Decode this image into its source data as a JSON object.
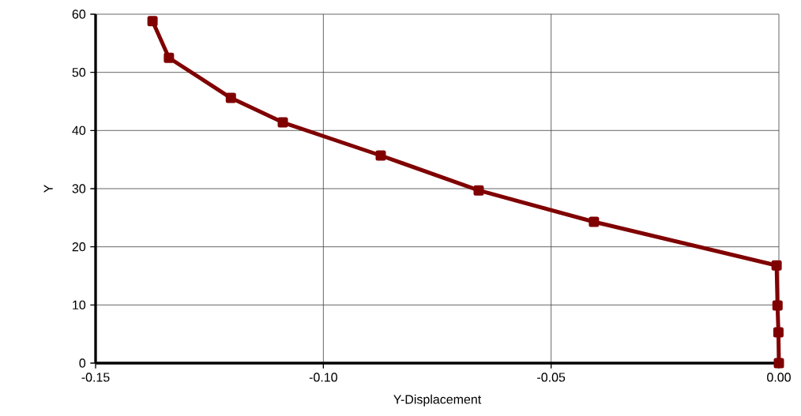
{
  "chart_data": {
    "type": "line",
    "xlabel": "Y-Displacement",
    "ylabel": "Y",
    "x": [
      -0.1375,
      -0.1339,
      -0.1203,
      -0.1089,
      -0.0874,
      -0.0659,
      -0.0406,
      -0.0005,
      -0.0003,
      -0.0001,
      0.0
    ],
    "values": [
      58.8,
      52.5,
      45.6,
      41.4,
      35.7,
      29.7,
      24.3,
      16.8,
      9.9,
      5.3,
      0.0
    ],
    "color": "#800000",
    "marker": "square",
    "line_style": "solid",
    "grid": true,
    "xlim": [
      -0.15,
      0.0
    ],
    "xticks": [
      -0.15,
      {
        "value": -0.1,
        "label": "-0.10"
      },
      -0.05,
      {
        "value": 0.0,
        "label": "0.00"
      }
    ],
    "ylim": [
      0,
      60
    ],
    "yticks": [
      0,
      10,
      20,
      30,
      40,
      50,
      60
    ]
  }
}
